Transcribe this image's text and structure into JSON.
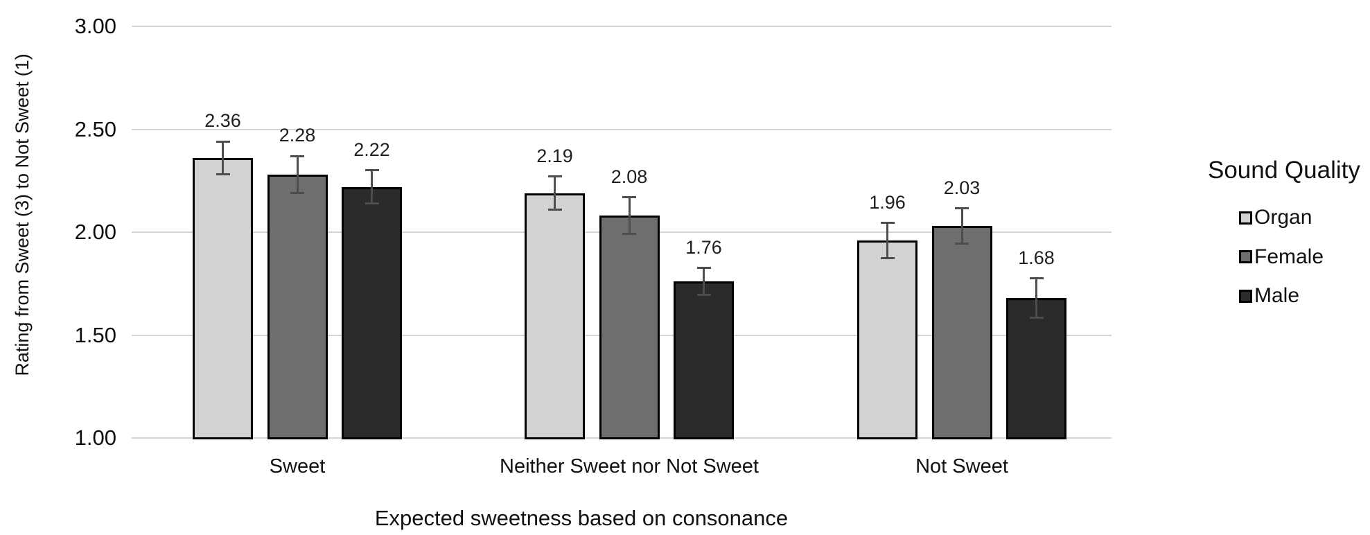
{
  "chart_data": {
    "type": "bar",
    "title": "",
    "xlabel": "Expected sweetness based on consonance",
    "ylabel": "Rating from Sweet (3) to Not Sweet (1)",
    "categories": [
      "Sweet",
      "Neither Sweet nor Not Sweet",
      "Not Sweet"
    ],
    "series": [
      {
        "name": "Organ",
        "color": "#d2d2d2",
        "values": [
          2.36,
          2.19,
          1.96
        ],
        "errors": [
          0.08,
          0.08,
          0.085
        ]
      },
      {
        "name": "Female",
        "color": "#6e6e6e",
        "values": [
          2.28,
          2.08,
          2.03
        ],
        "errors": [
          0.09,
          0.09,
          0.085
        ]
      },
      {
        "name": "Male",
        "color": "#2b2b2b",
        "values": [
          2.22,
          1.76,
          1.68
        ],
        "errors": [
          0.08,
          0.065,
          0.095
        ]
      }
    ],
    "yticks": [
      {
        "label": "3.00",
        "value": 3.0
      },
      {
        "label": "2.50",
        "value": 2.5
      },
      {
        "label": "2.00",
        "value": 2.0
      },
      {
        "label": "1.50",
        "value": 1.5
      },
      {
        "label": "1.00",
        "value": 1.0
      }
    ],
    "ylim": [
      1.0,
      3.0
    ],
    "grid": true,
    "bar_edge_color": "#000000",
    "error_bar_color": "#4d4d4d",
    "gridline_color": "#d5d5d5",
    "legend": {
      "title": "Sound Quality",
      "position": "right"
    }
  }
}
